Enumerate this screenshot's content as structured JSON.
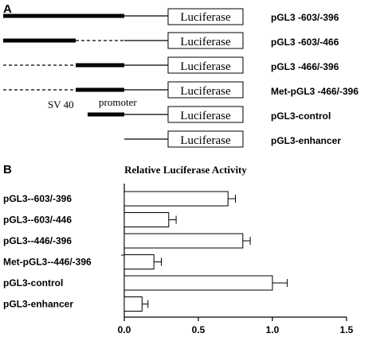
{
  "panel_a": {
    "label": "A",
    "box_label": "Luciferase",
    "sv40_label": "SV 40",
    "promoter_label": "promoter",
    "constructs": [
      {
        "name": "pGL3 -603/-396"
      },
      {
        "name": "pGL3 -603/-466"
      },
      {
        "name": "pGL3 -466/-396"
      },
      {
        "name": "Met-pGL3 -466/-396"
      },
      {
        "name": "pGL3-control"
      },
      {
        "name": "pGL3-enhancer"
      }
    ]
  },
  "panel_b": {
    "label": "B"
  },
  "chart_data": {
    "type": "bar",
    "orientation": "horizontal",
    "title": "Relative Luciferase Activity",
    "categories": [
      "pGL3--603/-396",
      "pGL3--603/-446",
      "pGL3--446/-396",
      "Met-pGL3--446/-396",
      "pGL3-control",
      "pGL3-enhancer"
    ],
    "values": [
      0.7,
      0.3,
      0.8,
      0.2,
      1.0,
      0.12
    ],
    "errors": [
      0.05,
      0.05,
      0.05,
      0.05,
      0.1,
      0.04
    ],
    "xlim": [
      0,
      1.5
    ],
    "xticks": [
      0.0,
      0.5,
      1.0,
      1.5
    ],
    "xtick_labels": [
      "0.0",
      "0.5",
      "1.0",
      "1.5"
    ],
    "grid": false,
    "bar_color": "#ffffff",
    "edge_color": "#000000"
  }
}
